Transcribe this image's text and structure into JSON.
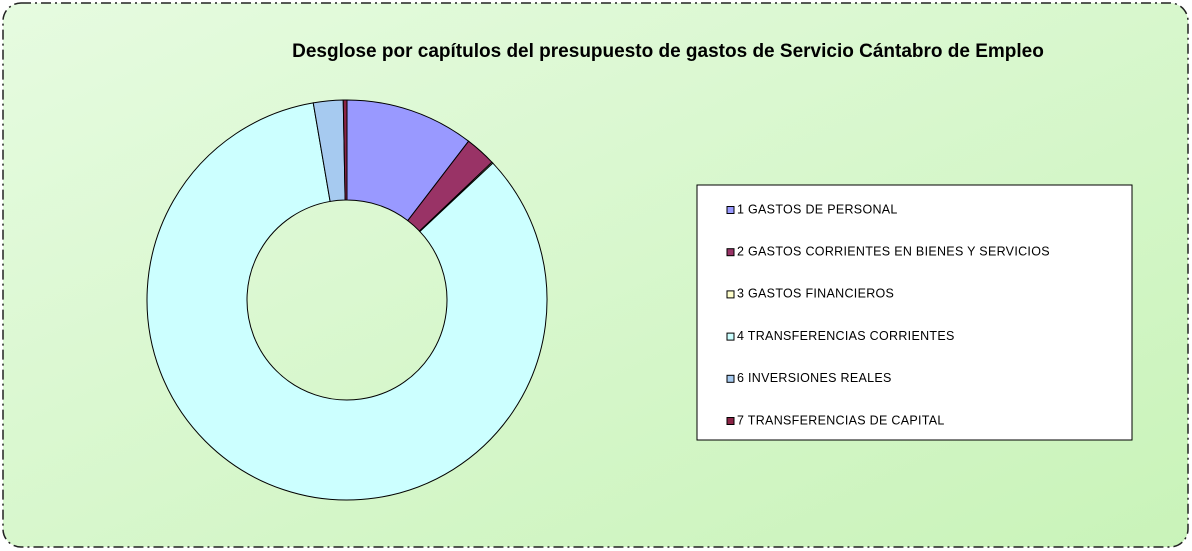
{
  "chart_data": {
    "type": "donut",
    "title": "Desglose por capítulos del presupuesto de gastos de Servicio Cántabro de Empleo",
    "categories": [
      "1 GASTOS DE PERSONAL",
      "2 GASTOS CORRIENTES EN BIENES Y SERVICIOS",
      "3 GASTOS FINANCIEROS",
      "4 TRANSFERENCIAS CORRIENTES",
      "6 INVERSIONES REALES",
      "7 TRANSFERENCIAS DE CAPITAL"
    ],
    "values": [
      10.4,
      2.5,
      0.1,
      84.3,
      2.4,
      0.3
    ],
    "colors": [
      "#9999ff",
      "#993366",
      "#ffffcc",
      "#ccffff",
      "#a6caf0",
      "#8b2446"
    ],
    "legend": "right"
  }
}
